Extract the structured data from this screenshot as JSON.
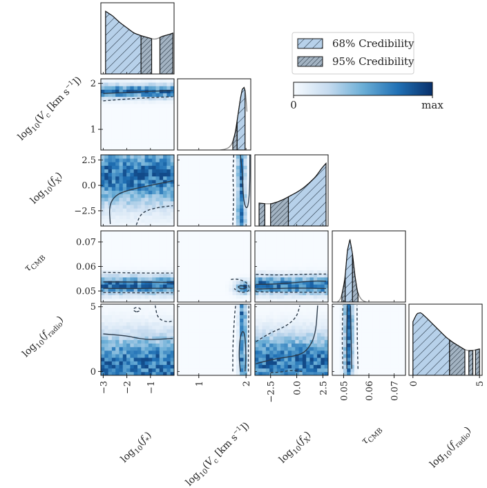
{
  "chart_data": {
    "type": "heatmap",
    "parameters": [
      {
        "key": "fstar",
        "label": "log10(f*)",
        "range": [
          -3.1,
          0.0
        ],
        "ticks": [
          -3,
          -2,
          -1
        ],
        "tick_labels": [
          "−3",
          "−2",
          "−1"
        ]
      },
      {
        "key": "vc",
        "label": "log10(Vc [km s−1])",
        "range": [
          0.55,
          2.1
        ],
        "ticks": [
          1,
          2
        ],
        "tick_labels": [
          "1",
          "2"
        ]
      },
      {
        "key": "fx",
        "label": "log10(fX)",
        "range": [
          -4.0,
          3.0
        ],
        "ticks": [
          -2.5,
          0.0,
          2.5
        ],
        "tick_labels": [
          "−2.5",
          "0.0",
          "2.5"
        ]
      },
      {
        "key": "tau",
        "label": "τCMB",
        "range": [
          0.0455,
          0.0745
        ],
        "ticks": [
          0.05,
          0.06,
          0.07
        ],
        "tick_labels": [
          "0.05",
          "0.06",
          "0.07"
        ]
      },
      {
        "key": "fradio",
        "label": "log10(fradio)",
        "range": [
          -0.3,
          5.2
        ],
        "ticks": [
          0,
          5
        ],
        "tick_labels": [
          "0",
          "5"
        ]
      }
    ],
    "marginals": [
      {
        "param": "fstar",
        "x": [
          -2.9,
          -2.6,
          -2.3,
          -2.0,
          -1.7,
          -1.4,
          -1.1,
          -0.8,
          -0.5,
          -0.2,
          -0.05
        ],
        "density": [
          0.95,
          0.88,
          0.78,
          0.7,
          0.62,
          0.58,
          0.55,
          0.52,
          0.57,
          0.6,
          0.62
        ],
        "c68": [
          -2.9,
          -1.4
        ],
        "c95": [
          [
            -1.4,
            -0.95
          ],
          [
            -0.6,
            -0.05
          ]
        ]
      },
      {
        "param": "vc",
        "x": [
          1.45,
          1.55,
          1.65,
          1.72,
          1.78,
          1.83,
          1.88,
          1.92,
          1.96,
          1.99,
          2.02
        ],
        "density": [
          0.0,
          0.01,
          0.04,
          0.12,
          0.3,
          0.55,
          0.8,
          0.95,
          0.98,
          0.9,
          0.6
        ],
        "c68": [
          1.81,
          1.98
        ],
        "c95": [
          [
            1.72,
            1.81
          ]
        ]
      },
      {
        "param": "fx",
        "x": [
          -3.6,
          -3.0,
          -2.4,
          -1.8,
          -1.2,
          -0.6,
          0.0,
          0.6,
          1.2,
          1.8,
          2.4,
          2.8
        ],
        "density": [
          0.34,
          0.33,
          0.33,
          0.36,
          0.4,
          0.45,
          0.5,
          0.56,
          0.64,
          0.73,
          0.86,
          0.93
        ],
        "c68": [
          -0.8,
          2.8
        ],
        "c95": [
          [
            -3.6,
            -3.05
          ],
          [
            -2.5,
            -0.8
          ]
        ]
      },
      {
        "param": "tau",
        "x": [
          0.0475,
          0.049,
          0.0505,
          0.0515,
          0.0525,
          0.0535,
          0.0545,
          0.0555,
          0.057,
          0.059
        ],
        "density": [
          0.0,
          0.05,
          0.35,
          0.8,
          0.97,
          0.75,
          0.4,
          0.15,
          0.03,
          0.0
        ],
        "c68": [
          0.0506,
          0.0535
        ],
        "c95": [
          [
            0.0493,
            0.0506
          ],
          [
            0.0535,
            0.0557
          ]
        ]
      },
      {
        "param": "fradio",
        "x": [
          0.0,
          0.3,
          0.6,
          1.0,
          1.5,
          2.0,
          2.5,
          3.0,
          3.5,
          4.0,
          4.5,
          5.0
        ],
        "density": [
          0.65,
          0.75,
          0.76,
          0.7,
          0.62,
          0.54,
          0.46,
          0.4,
          0.35,
          0.3,
          0.3,
          0.32
        ],
        "c68": [
          0.0,
          2.75
        ],
        "c95": [
          [
            2.75,
            3.9
          ],
          [
            4.2,
            4.5
          ],
          [
            4.7,
            5.0
          ]
        ]
      }
    ],
    "pairs": [
      {
        "x": "fstar",
        "y": "vc",
        "peak_y": 1.83,
        "spread_y": 0.1,
        "trend": 0.0,
        "contour68": [
          [
            -3.0,
            1.78
          ],
          [
            -2.0,
            1.8
          ],
          [
            -1.0,
            1.83
          ],
          [
            -0.05,
            1.84
          ]
        ],
        "contour95": [
          [
            -3.0,
            1.62
          ],
          [
            -2.0,
            1.66
          ],
          [
            -1.0,
            1.69
          ],
          [
            -0.05,
            1.71
          ]
        ]
      },
      {
        "x": "fstar",
        "y": "fx",
        "peak_y": 1.0,
        "spread_y": 2.0,
        "trend": 0.0,
        "contour68": [
          [
            -2.7,
            -3.8
          ],
          [
            -2.75,
            -2.0
          ],
          [
            -2.5,
            -1.0
          ],
          [
            -2.0,
            -0.5
          ],
          [
            -1.0,
            0.0
          ],
          [
            -0.05,
            0.45
          ]
        ],
        "contour95": [
          [
            -1.6,
            -3.9
          ],
          [
            -1.4,
            -2.7
          ],
          [
            -0.8,
            -2.2
          ],
          [
            -0.05,
            -2.0
          ]
        ]
      },
      {
        "x": "fstar",
        "y": "tau",
        "peak_y": 0.0525,
        "spread_y": 0.0025,
        "trend": 0.0,
        "contour68": [
          [
            -3.0,
            0.0537
          ],
          [
            -2.0,
            0.0537
          ],
          [
            -1.0,
            0.0536
          ],
          [
            -0.05,
            0.0535
          ]
        ],
        "contour95": [
          [
            -3.0,
            0.0576
          ],
          [
            -2.0,
            0.0574
          ],
          [
            -1.0,
            0.0573
          ],
          [
            -0.05,
            0.0573
          ]
        ],
        "contour95b": [
          [
            -3.0,
            0.0494
          ],
          [
            -2.0,
            0.0493
          ],
          [
            -1.0,
            0.0493
          ],
          [
            -0.05,
            0.0493
          ]
        ],
        "contour68b": [
          [
            -3.0,
            0.0511
          ],
          [
            -2.0,
            0.051
          ],
          [
            -1.0,
            0.0511
          ],
          [
            -0.05,
            0.0511
          ]
        ]
      },
      {
        "x": "fstar",
        "y": "fradio",
        "peak_y": 0.5,
        "spread_y": 1.6,
        "trend": 0.0,
        "contour68": [
          [
            -3.0,
            2.9
          ],
          [
            -2.0,
            2.75
          ],
          [
            -1.5,
            2.55
          ],
          [
            -1.0,
            2.45
          ],
          [
            -0.05,
            2.55
          ]
        ],
        "contour95": [
          [
            -0.8,
            5.1
          ],
          [
            -0.7,
            4.1
          ],
          [
            -0.3,
            3.8
          ],
          [
            -0.05,
            3.9
          ]
        ],
        "contour95b": [
          [
            -1.6,
            4.6
          ],
          [
            -1.75,
            4.75
          ],
          [
            -1.65,
            4.95
          ],
          [
            -1.45,
            4.9
          ],
          [
            -1.4,
            4.7
          ],
          [
            -1.6,
            4.6
          ]
        ]
      },
      {
        "x": "vc",
        "y": "fx",
        "peak_x": 1.9,
        "spread_x": 0.06,
        "contour68": [
          [
            1.88,
            3.0
          ],
          [
            1.92,
            1.5
          ],
          [
            1.93,
            0.0
          ],
          [
            1.95,
            -1.5
          ],
          [
            2.0,
            -2.3
          ],
          [
            2.05,
            -2.0
          ],
          [
            2.08,
            0.0
          ],
          [
            2.08,
            3.0
          ]
        ],
        "contour95": [
          [
            1.74,
            3.0
          ],
          [
            1.72,
            1.0
          ],
          [
            1.74,
            -1.0
          ],
          [
            1.72,
            -3.9
          ]
        ]
      },
      {
        "x": "vc",
        "y": "tau",
        "peak_x": 1.95,
        "peak_y": 0.0515,
        "contour68": [
          [
            1.83,
            0.0517
          ],
          [
            1.88,
            0.0522
          ],
          [
            1.97,
            0.052
          ],
          [
            2.02,
            0.0515
          ],
          [
            1.97,
            0.0509
          ],
          [
            1.88,
            0.0509
          ],
          [
            1.83,
            0.0517
          ]
        ],
        "contour95": [
          [
            1.68,
            0.0547
          ],
          [
            1.78,
            0.0549
          ],
          [
            1.9,
            0.0545
          ],
          [
            2.05,
            0.053
          ],
          [
            2.08,
            0.05
          ],
          [
            1.92,
            0.0493
          ],
          [
            1.82,
            0.05
          ],
          [
            1.75,
            0.051
          ]
        ]
      },
      {
        "x": "vc",
        "y": "fradio",
        "peak_x": 1.93,
        "spread_x": 0.05,
        "contour68": [
          [
            1.88,
            0.0
          ],
          [
            1.85,
            1.2
          ],
          [
            1.87,
            2.6
          ],
          [
            1.93,
            3.2
          ],
          [
            1.98,
            2.8
          ],
          [
            2.0,
            1.2
          ],
          [
            1.98,
            0.0
          ]
        ],
        "contour95": [
          [
            1.72,
            0.0
          ],
          [
            1.72,
            2.0
          ],
          [
            1.76,
            4.5
          ],
          [
            1.78,
            5.1
          ]
        ],
        "contour95b": [
          [
            2.05,
            0.0
          ],
          [
            2.05,
            2.0
          ],
          [
            2.06,
            5.1
          ]
        ]
      },
      {
        "x": "fx",
        "y": "tau",
        "peak_y": 0.0525,
        "spread_y": 0.0025,
        "contour68": [
          [
            -3.9,
            0.0527
          ],
          [
            -2.0,
            0.0528
          ],
          [
            0.0,
            0.0535
          ],
          [
            1.5,
            0.0541
          ],
          [
            2.8,
            0.054
          ]
        ],
        "contour68b": [
          [
            -3.9,
            0.0508
          ],
          [
            -2.0,
            0.051
          ],
          [
            0.0,
            0.0512
          ],
          [
            1.5,
            0.0511
          ],
          [
            2.8,
            0.051
          ]
        ],
        "contour95": [
          [
            -3.9,
            0.0568
          ],
          [
            -2.0,
            0.0565
          ],
          [
            0.0,
            0.0567
          ],
          [
            1.5,
            0.0569
          ],
          [
            2.8,
            0.0569
          ]
        ],
        "contour95b": [
          [
            -3.9,
            0.0497
          ],
          [
            -2.0,
            0.0495
          ],
          [
            0.0,
            0.0495
          ],
          [
            1.5,
            0.0495
          ],
          [
            2.8,
            0.0495
          ]
        ]
      },
      {
        "x": "fx",
        "y": "fradio",
        "peak_y": 0.8,
        "spread_y": 1.4,
        "contour68": [
          [
            -3.9,
            0.6
          ],
          [
            -2.0,
            1.0
          ],
          [
            0.0,
            1.2
          ],
          [
            1.0,
            1.6
          ],
          [
            1.8,
            2.8
          ],
          [
            2.0,
            5.1
          ]
        ],
        "contour95": [
          [
            -3.9,
            2.3
          ],
          [
            -2.5,
            3.0
          ],
          [
            -1.0,
            3.5
          ],
          [
            0.0,
            4.2
          ],
          [
            0.3,
            5.1
          ]
        ],
        "contour95b": [
          [
            -2.5,
            -0.1
          ],
          [
            -1.5,
            -0.05
          ],
          [
            -0.5,
            0.1
          ],
          [
            0.5,
            0.0
          ]
        ]
      },
      {
        "x": "tau",
        "y": "fradio",
        "peak_x": 0.052,
        "spread_x": 0.0012,
        "contour68": [
          [
            0.0513,
            0.2
          ],
          [
            0.0512,
            2.0
          ],
          [
            0.0514,
            5.1
          ]
        ],
        "contour68b": [
          [
            0.0532,
            0.2
          ],
          [
            0.053,
            2.5
          ],
          [
            0.0527,
            5.1
          ]
        ],
        "contour95": [
          [
            0.0497,
            0.2
          ],
          [
            0.0494,
            2.5
          ],
          [
            0.0497,
            5.1
          ]
        ],
        "contour95b": [
          [
            0.0557,
            0.2
          ],
          [
            0.0554,
            2.5
          ],
          [
            0.0553,
            5.1
          ]
        ]
      }
    ],
    "legend": {
      "entries": [
        "68% Credibility",
        "95% Credibility"
      ],
      "placement": "top-right"
    },
    "colorbar": {
      "min_label": "0",
      "max_label": "max",
      "colormap": "Blues"
    }
  },
  "colors": {
    "light": "#b7d1ea",
    "dark": "#9fb0bf",
    "line": "#2b3a4a",
    "frame": "#111111",
    "cmap_low": "#f7fbff",
    "cmap_high": "#08306b"
  }
}
